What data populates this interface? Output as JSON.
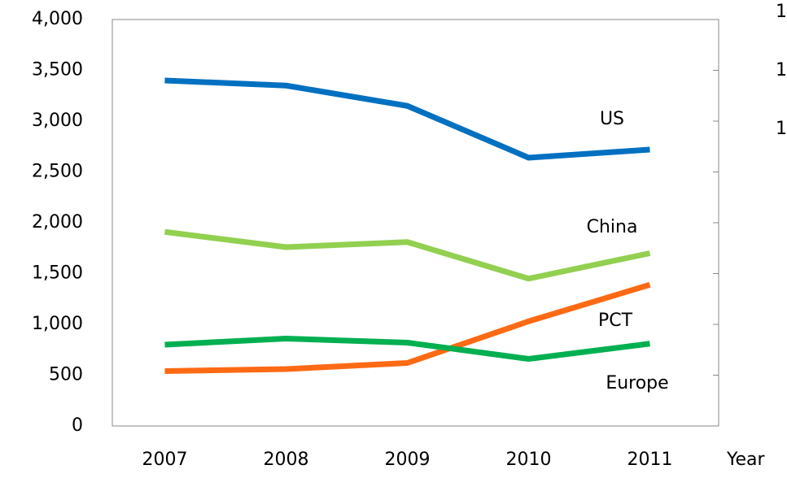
{
  "chart_data": {
    "type": "line",
    "categories": [
      "2007",
      "2008",
      "2009",
      "2010",
      "2011"
    ],
    "x_label": "Year",
    "series": [
      {
        "name": "US",
        "color": "#0070c0",
        "values": [
          3400,
          3350,
          3150,
          2640,
          2720
        ]
      },
      {
        "name": "China",
        "color": "#92d050",
        "values": [
          1910,
          1760,
          1810,
          1450,
          1700
        ]
      },
      {
        "name": "PCT",
        "color": "#fe6a14",
        "values": [
          540,
          560,
          620,
          1030,
          1390
        ]
      },
      {
        "name": "Europe",
        "color": "#00b050",
        "values": [
          800,
          860,
          820,
          660,
          810
        ]
      }
    ],
    "ylim": [
      0,
      4000
    ],
    "yticks": [
      0,
      500,
      {
        "value": 1000,
        "label": "1,000"
      },
      {
        "value": 1500,
        "label": "1,500"
      },
      {
        "value": 2000,
        "label": "2,000"
      },
      {
        "value": 2500,
        "label": "2,500"
      },
      {
        "value": 3000,
        "label": "3,000"
      },
      {
        "value": 3500,
        "label": "3,500"
      },
      {
        "value": 4000,
        "label": "4,000"
      }
    ],
    "grid": false,
    "edge_labels": [
      "1",
      "1",
      "1"
    ]
  }
}
